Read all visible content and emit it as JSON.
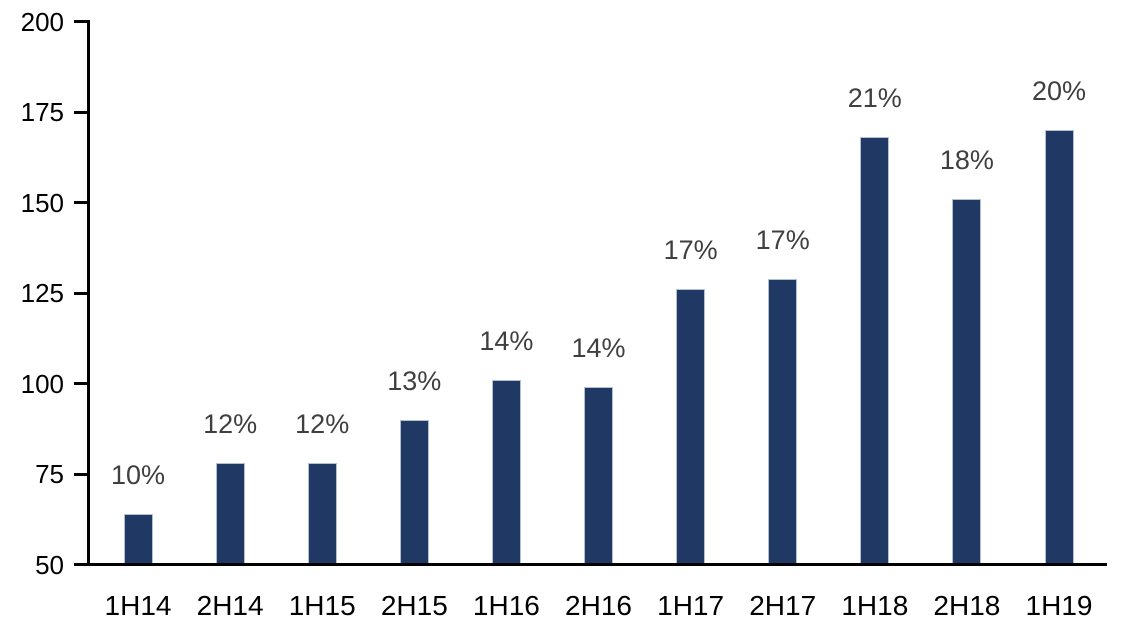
{
  "chart_data": {
    "type": "bar",
    "title": "",
    "xlabel": "",
    "ylabel": "",
    "categories": [
      "1H14",
      "2H14",
      "1H15",
      "2H15",
      "1H16",
      "2H16",
      "1H17",
      "2H17",
      "1H18",
      "2H18",
      "1H19"
    ],
    "values": [
      64,
      78,
      78,
      90,
      101,
      99,
      126,
      129,
      168,
      151,
      170
    ],
    "bar_labels": [
      "10%",
      "12%",
      "12%",
      "13%",
      "14%",
      "14%",
      "17%",
      "17%",
      "21%",
      "18%",
      "20%"
    ],
    "ylim": [
      50,
      200
    ],
    "yticks": [
      50,
      75,
      100,
      125,
      150,
      175,
      200
    ],
    "ytick_labels": [
      "50",
      "75",
      "100",
      "125",
      "150",
      "175",
      "200"
    ],
    "grid": false,
    "legend": false,
    "colors": {
      "bar_fill": "#1F3864",
      "bar_border": "#B3BFD3",
      "bar_label": "#3F3F3F",
      "axis": "#000000",
      "tick_label": "#000000",
      "background": "#FFFFFF"
    }
  }
}
